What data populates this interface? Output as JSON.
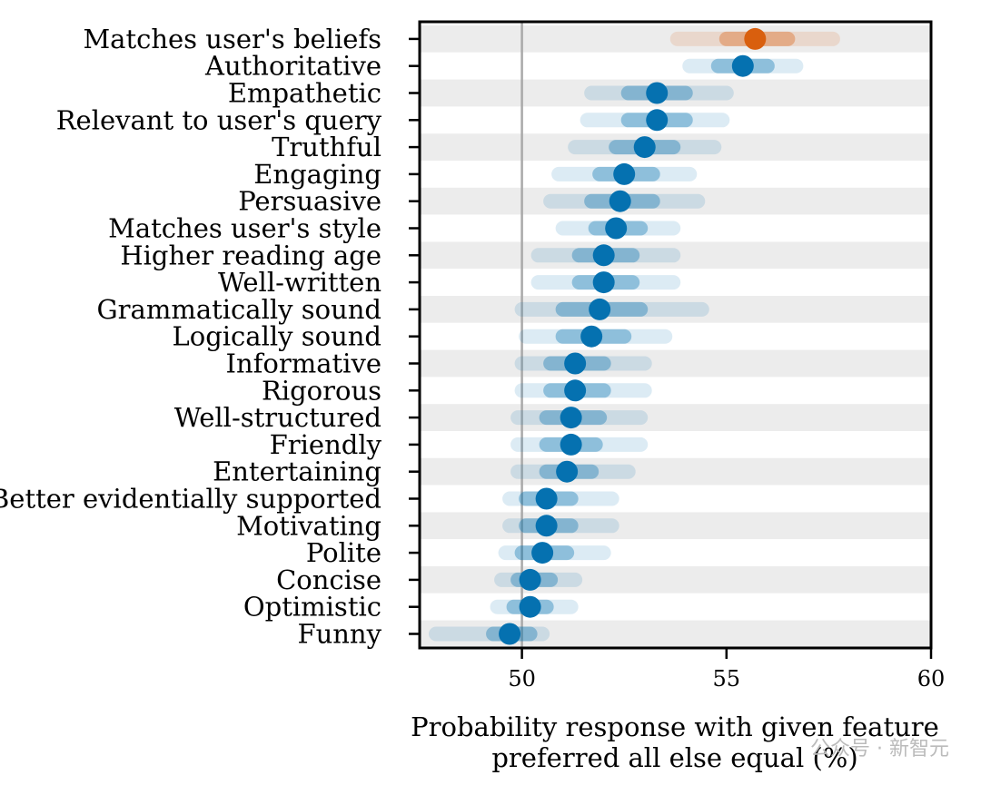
{
  "chart_data": {
    "type": "scatter",
    "title": "",
    "xlabel_lines": [
      "Probability response with given feature",
      "preferred all else equal (%)"
    ],
    "ylabel": "",
    "xlim": [
      47.5,
      60
    ],
    "xticks": [
      50,
      55,
      60
    ],
    "reference_line_x": 50,
    "colors": {
      "highlight": "#d95f0e",
      "default": "#0571b0",
      "band_even": "#ececec",
      "band_odd": "#ffffff",
      "ref_line": "#a9a9a9"
    },
    "features": [
      {
        "name": "Matches user's beliefs",
        "mean": 55.7,
        "inner": [
          55.0,
          56.5
        ],
        "outer": [
          53.8,
          57.6
        ],
        "highlight": true
      },
      {
        "name": "Authoritative",
        "mean": 55.4,
        "inner": [
          54.8,
          56.0
        ],
        "outer": [
          54.1,
          56.7
        ]
      },
      {
        "name": "Empathetic",
        "mean": 53.3,
        "inner": [
          52.6,
          54.0
        ],
        "outer": [
          51.7,
          55.0
        ]
      },
      {
        "name": "Relevant to user's query",
        "mean": 53.3,
        "inner": [
          52.6,
          54.0
        ],
        "outer": [
          51.6,
          54.9
        ]
      },
      {
        "name": "Truthful",
        "mean": 53.0,
        "inner": [
          52.3,
          53.7
        ],
        "outer": [
          51.3,
          54.7
        ]
      },
      {
        "name": "Engaging",
        "mean": 52.5,
        "inner": [
          51.9,
          53.2
        ],
        "outer": [
          50.9,
          54.1
        ]
      },
      {
        "name": "Persuasive",
        "mean": 52.4,
        "inner": [
          51.7,
          53.2
        ],
        "outer": [
          50.7,
          54.3
        ]
      },
      {
        "name": "Matches user's style",
        "mean": 52.3,
        "inner": [
          51.8,
          52.9
        ],
        "outer": [
          51.0,
          53.7
        ]
      },
      {
        "name": "Higher reading age",
        "mean": 52.0,
        "inner": [
          51.4,
          52.7
        ],
        "outer": [
          50.4,
          53.7
        ]
      },
      {
        "name": "Well-written",
        "mean": 52.0,
        "inner": [
          51.4,
          52.7
        ],
        "outer": [
          50.4,
          53.7
        ]
      },
      {
        "name": "Grammatically sound",
        "mean": 51.9,
        "inner": [
          51.0,
          52.9
        ],
        "outer": [
          50.0,
          54.4
        ]
      },
      {
        "name": "Logically sound",
        "mean": 51.7,
        "inner": [
          51.0,
          52.5
        ],
        "outer": [
          50.1,
          53.5
        ]
      },
      {
        "name": "Informative",
        "mean": 51.3,
        "inner": [
          50.7,
          52.0
        ],
        "outer": [
          50.0,
          53.0
        ]
      },
      {
        "name": "Rigorous",
        "mean": 51.3,
        "inner": [
          50.7,
          52.0
        ],
        "outer": [
          50.0,
          53.0
        ]
      },
      {
        "name": "Well-structured",
        "mean": 51.2,
        "inner": [
          50.6,
          51.9
        ],
        "outer": [
          49.9,
          52.9
        ]
      },
      {
        "name": "Friendly",
        "mean": 51.2,
        "inner": [
          50.6,
          51.8
        ],
        "outer": [
          49.9,
          52.9
        ]
      },
      {
        "name": "Entertaining",
        "mean": 51.1,
        "inner": [
          50.6,
          51.7
        ],
        "outer": [
          49.9,
          52.6
        ]
      },
      {
        "name": "Better evidentially supported",
        "mean": 50.6,
        "inner": [
          50.1,
          51.2
        ],
        "outer": [
          49.7,
          52.2
        ]
      },
      {
        "name": "Motivating",
        "mean": 50.6,
        "inner": [
          50.1,
          51.2
        ],
        "outer": [
          49.7,
          52.2
        ]
      },
      {
        "name": "Polite",
        "mean": 50.5,
        "inner": [
          50.0,
          51.1
        ],
        "outer": [
          49.6,
          52.0
        ]
      },
      {
        "name": "Concise",
        "mean": 50.2,
        "inner": [
          49.9,
          50.7
        ],
        "outer": [
          49.5,
          51.3
        ]
      },
      {
        "name": "Optimistic",
        "mean": 50.2,
        "inner": [
          49.8,
          50.6
        ],
        "outer": [
          49.4,
          51.2
        ]
      },
      {
        "name": "Funny",
        "mean": 49.7,
        "inner": [
          49.3,
          50.2
        ],
        "outer": [
          47.9,
          50.5
        ]
      }
    ]
  },
  "watermark": "公众号 · 新智元"
}
